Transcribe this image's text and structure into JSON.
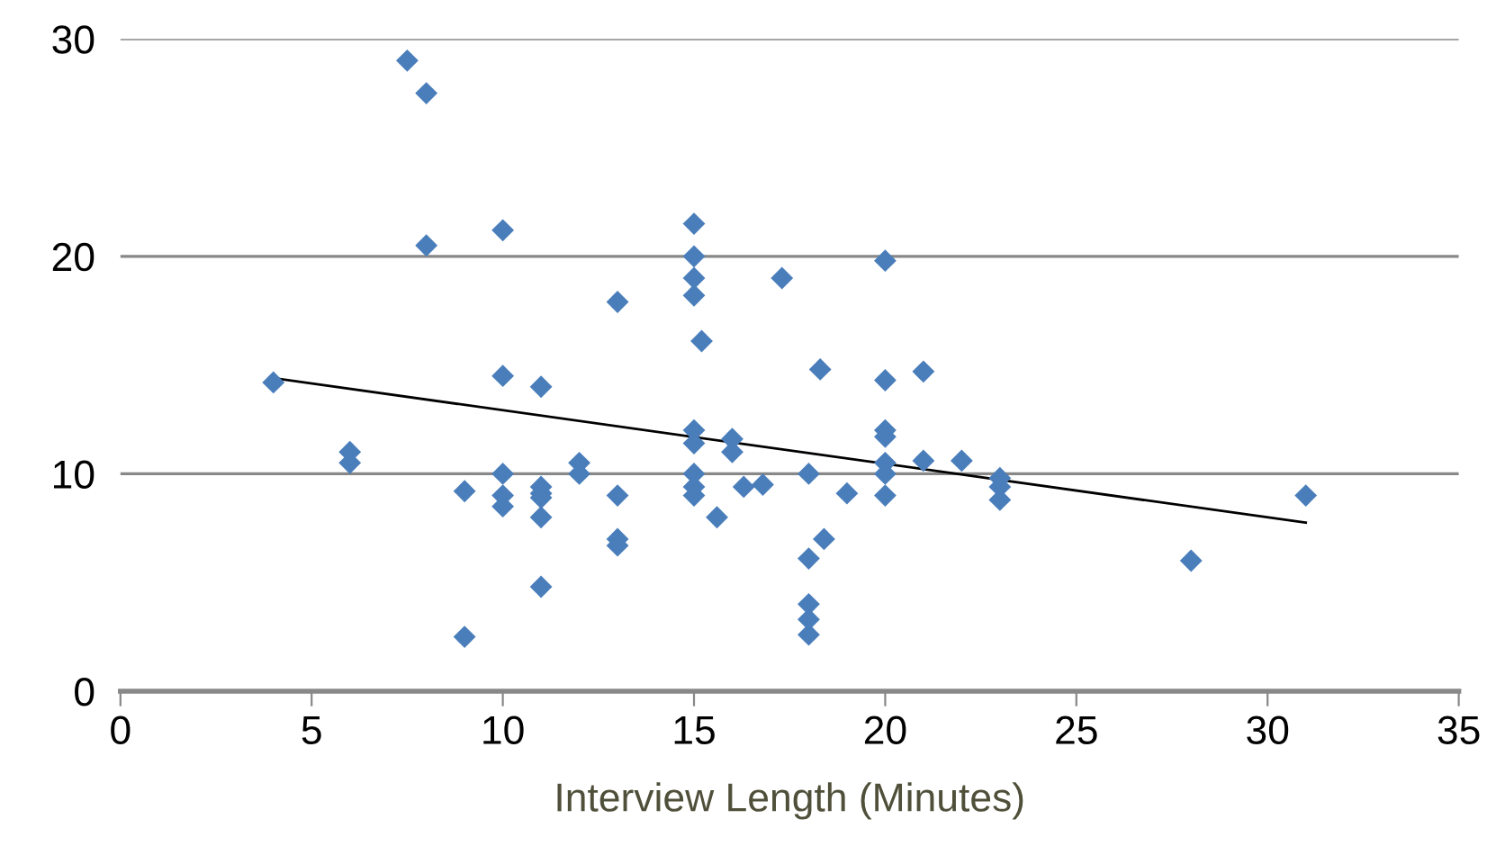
{
  "chart_data": {
    "type": "scatter",
    "xlabel": "Interview Length (Minutes)",
    "xlim": [
      0,
      35
    ],
    "xticks": [
      0,
      5,
      10,
      15,
      20,
      25,
      30,
      35
    ],
    "ylim": [
      0,
      30
    ],
    "yticks": [
      0,
      10,
      20,
      30
    ],
    "grid": "y",
    "marker": "diamond",
    "legend": false,
    "series": [
      {
        "color": "#4a7ebb",
        "x": [
          4,
          6,
          6,
          7.5,
          8,
          8,
          9,
          9,
          10,
          10,
          10,
          10,
          10,
          11,
          11,
          11,
          11,
          11,
          11,
          12,
          12,
          13,
          13,
          13,
          13,
          15,
          15,
          15,
          15,
          15.2,
          15,
          15,
          15,
          15,
          15,
          15.6,
          16,
          16,
          16.3,
          16.8,
          17.3,
          18,
          18,
          18,
          18,
          18,
          18.3,
          18.4,
          19,
          20,
          20,
          20,
          20,
          20,
          20,
          20,
          21,
          21,
          22,
          23,
          23,
          23,
          28,
          31
        ],
        "values": [
          14.2,
          11,
          10.5,
          29,
          27.5,
          20.5,
          9.2,
          2.5,
          21.2,
          14.5,
          10,
          9,
          8.5,
          14,
          9.4,
          9.1,
          8.9,
          8,
          4.8,
          10.5,
          10,
          17.9,
          9,
          7,
          6.7,
          21.5,
          20,
          19,
          18.2,
          16.1,
          12,
          11.4,
          10,
          9.4,
          9,
          8,
          11.6,
          11,
          9.4,
          9.5,
          19,
          10,
          6.1,
          4,
          3.3,
          2.6,
          14.8,
          7,
          9.1,
          19.8,
          14.3,
          12,
          11.7,
          10.5,
          10,
          9,
          14.7,
          10.6,
          10.6,
          9.8,
          9.4,
          8.8,
          6,
          9
        ]
      },
      {
        "type": "line",
        "color": "#000000",
        "x": [
          4,
          31
        ],
        "values": [
          14.4,
          7.75
        ],
        "marker": "none"
      }
    ]
  }
}
